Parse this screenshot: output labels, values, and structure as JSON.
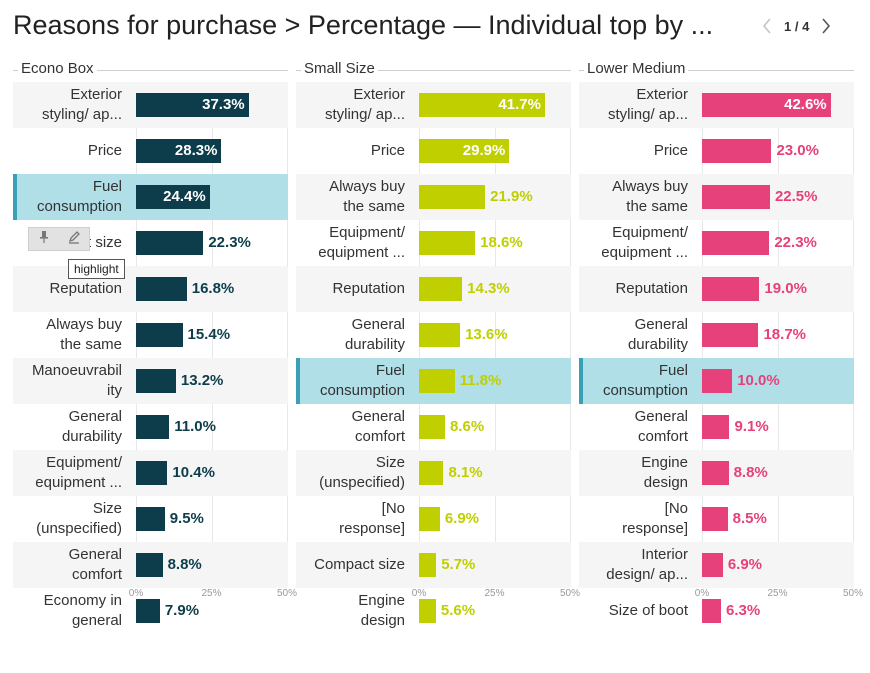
{
  "header": {
    "title": "Reasons for purchase > Percentage — Individual top by ...",
    "pager_text": "1 / 4"
  },
  "tooltip": {
    "label": "highlight"
  },
  "icons": [
    "pin-icon",
    "pencil-icon",
    "chevron-left-icon",
    "chevron-right-icon"
  ],
  "colors": {
    "econo_box": "#0d3d4a",
    "small_size": "#bfcf00",
    "lower_medium": "#e6417a",
    "highlight_row": "#b0dfe8",
    "highlight_accent": "#3aa0b5"
  },
  "chart_data": [
    {
      "type": "bar",
      "title": "Econo Box",
      "orientation": "horizontal",
      "categories": [
        [
          "Exterior",
          "styling/ ap..."
        ],
        [
          "Price"
        ],
        [
          "Fuel",
          "consumption"
        ],
        [
          "Compact size"
        ],
        [
          "Reputation"
        ],
        [
          "Always buy",
          "the same"
        ],
        [
          "Manoeuvrabil",
          "ity"
        ],
        [
          "General",
          "durability"
        ],
        [
          "Equipment/",
          "equipment ..."
        ],
        [
          "Size",
          "(unspecified)"
        ],
        [
          "General",
          "comfort"
        ],
        [
          "Economy in",
          "general"
        ]
      ],
      "values": [
        37.3,
        28.3,
        24.4,
        22.3,
        16.8,
        15.4,
        13.2,
        11.0,
        10.4,
        9.5,
        8.8,
        7.9
      ],
      "labels": [
        "37.3%",
        "28.3%",
        "24.4%",
        "22.3%",
        "16.8%",
        "15.4%",
        "13.2%",
        "11.0%",
        "10.4%",
        "9.5%",
        "8.8%",
        "7.9%"
      ],
      "highlighted": [
        2
      ],
      "xlim": [
        0,
        50
      ],
      "ticks": [
        "0%",
        "25%",
        "50%"
      ],
      "color": "#0d3d4a"
    },
    {
      "type": "bar",
      "title": "Small Size",
      "orientation": "horizontal",
      "categories": [
        [
          "Exterior",
          "styling/ ap..."
        ],
        [
          "Price"
        ],
        [
          "Always buy",
          "the same"
        ],
        [
          "Equipment/",
          "equipment ..."
        ],
        [
          "Reputation"
        ],
        [
          "General",
          "durability"
        ],
        [
          "Fuel",
          "consumption"
        ],
        [
          "General",
          "comfort"
        ],
        [
          "Size",
          "(unspecified)"
        ],
        [
          "[No",
          "response]"
        ],
        [
          "Compact size"
        ],
        [
          "Engine",
          "design"
        ]
      ],
      "values": [
        41.7,
        29.9,
        21.9,
        18.6,
        14.3,
        13.6,
        11.8,
        8.6,
        8.1,
        6.9,
        5.7,
        5.6
      ],
      "labels": [
        "41.7%",
        "29.9%",
        "21.9%",
        "18.6%",
        "14.3%",
        "13.6%",
        "11.8%",
        "8.6%",
        "8.1%",
        "6.9%",
        "5.7%",
        "5.6%"
      ],
      "highlighted": [
        6
      ],
      "xlim": [
        0,
        50
      ],
      "ticks": [
        "0%",
        "25%",
        "50%"
      ],
      "color": "#bfcf00"
    },
    {
      "type": "bar",
      "title": "Lower Medium",
      "orientation": "horizontal",
      "categories": [
        [
          "Exterior",
          "styling/ ap..."
        ],
        [
          "Price"
        ],
        [
          "Always buy",
          "the same"
        ],
        [
          "Equipment/",
          "equipment ..."
        ],
        [
          "Reputation"
        ],
        [
          "General",
          "durability"
        ],
        [
          "Fuel",
          "consumption"
        ],
        [
          "General",
          "comfort"
        ],
        [
          "Engine",
          "design"
        ],
        [
          "[No",
          "response]"
        ],
        [
          "Interior",
          "design/ ap..."
        ],
        [
          "Size of boot"
        ]
      ],
      "values": [
        42.6,
        23.0,
        22.5,
        22.3,
        19.0,
        18.7,
        10.0,
        9.1,
        8.8,
        8.5,
        6.9,
        6.3
      ],
      "labels": [
        "42.6%",
        "23.0%",
        "22.5%",
        "22.3%",
        "19.0%",
        "18.7%",
        "10.0%",
        "9.1%",
        "8.8%",
        "8.5%",
        "6.9%",
        "6.3%"
      ],
      "highlighted": [
        6
      ],
      "xlim": [
        0,
        50
      ],
      "ticks": [
        "0%",
        "25%",
        "50%"
      ],
      "color": "#e6417a"
    }
  ]
}
